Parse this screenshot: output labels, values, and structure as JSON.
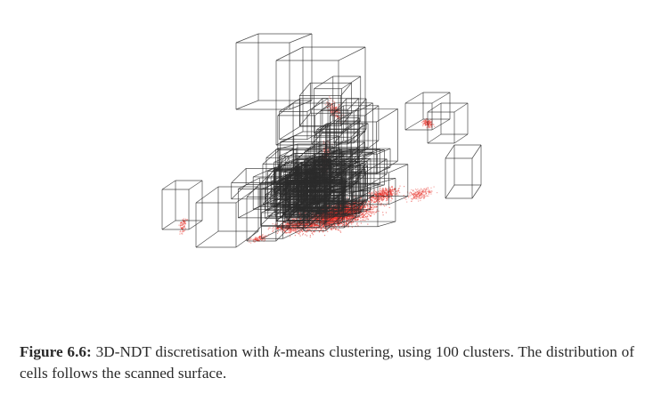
{
  "caption": {
    "label": "Figure 6.6:",
    "pre": " 3D-NDT discretisation with ",
    "k": "k",
    "post": "-means clustering, using 100 clusters. The distribution of cells follows the scanned surface."
  },
  "colors": {
    "wireframe": "#2b2b2b",
    "points": "#e8332b",
    "background": "#ffffff",
    "text": "#2a2a2a"
  }
}
